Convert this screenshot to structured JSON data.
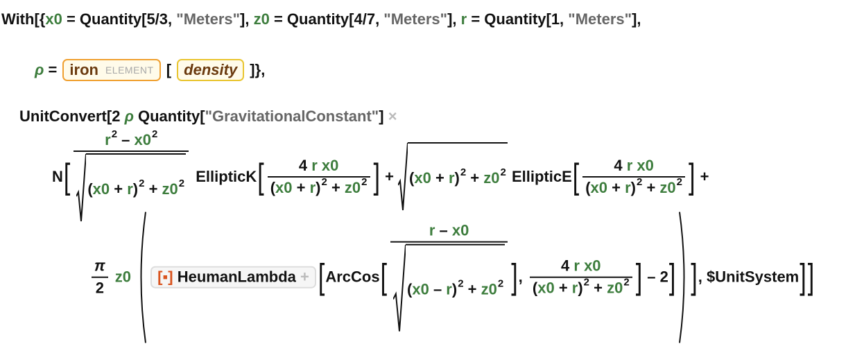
{
  "lines": [
    [
      "With[{",
      {
        "text": "x0",
        "color": "#3d7d3d"
      },
      " = Quantity[5/3, ",
      {
        "text": "\"Meters\"",
        "color": "#666666"
      },
      "], ",
      {
        "text": "z0",
        "color": "#3d7d3d"
      },
      " = Quantity[4/7, ",
      {
        "text": "\"Meters\"",
        "color": "#666666"
      },
      "], ",
      {
        "text": "r",
        "color": "#3d7d3d"
      },
      " = Quantity[1, ",
      {
        "text": "\"Meters\"",
        "color": "#666666"
      },
      "],"
    ],
    [
      {
        "text": "ρ",
        "color": "#3d7d3d",
        "italic": true
      },
      " = ",
      {
        "box": [
          {
            "text": "iron",
            "color": "#6b3a0f"
          },
          {
            "label": "ELEMENT"
          }
        ],
        "border": "#f0a030",
        "fill": "#fffbea"
      },
      " [ ",
      {
        "box": [
          {
            "text": "density",
            "color": "#6b3a0f",
            "italic": true
          }
        ],
        "border": "#e9c530",
        "fill": "#fffbea"
      },
      " ]},"
    ],
    [
      "UnitConvert[2 ",
      {
        "text": "ρ",
        "color": "#3d7d3d",
        "italic": true
      },
      " Quantity[",
      {
        "text": "\"GravitationalConstant\"",
        "color": "#666666"
      },
      "] ",
      {
        "text": "×",
        "color": "#bbbbbb"
      }
    ],
    [
      "N",
      {
        "bracket": "["
      },
      {
        "frac": [
          [
            {
              "text": "r",
              "color": "#3d7d3d"
            },
            {
              "sup": "2"
            },
            " – ",
            {
              "text": "x0",
              "color": "#3d7d3d"
            },
            {
              "sup": "2"
            }
          ],
          [
            {
              "sqrt": [
                "(",
                {
                  "text": "x0",
                  "color": "#3d7d3d"
                },
                " + ",
                {
                  "text": "r",
                  "color": "#3d7d3d"
                },
                ")",
                {
                  "sup": "2"
                },
                " + ",
                {
                  "text": "z0",
                  "color": "#3d7d3d"
                },
                {
                  "sup": "2"
                }
              ]
            }
          ]
        ]
      },
      " EllipticK",
      {
        "bracket": "["
      },
      {
        "frac": [
          [
            "4 ",
            {
              "text": "r",
              "color": "#3d7d3d"
            },
            " ",
            {
              "text": "x0",
              "color": "#3d7d3d"
            }
          ],
          [
            "(",
            {
              "text": "x0",
              "color": "#3d7d3d"
            },
            " + ",
            {
              "text": "r",
              "color": "#3d7d3d"
            },
            ")",
            {
              "sup": "2"
            },
            " + ",
            {
              "text": "z0",
              "color": "#3d7d3d"
            },
            {
              "sup": "2"
            }
          ]
        ]
      },
      {
        "bracket": "]"
      },
      " + ",
      {
        "sqrt": [
          "(",
          {
            "text": "x0",
            "color": "#3d7d3d"
          },
          " + ",
          {
            "text": "r",
            "color": "#3d7d3d"
          },
          ")",
          {
            "sup": "2"
          },
          " + ",
          {
            "text": "z0",
            "color": "#3d7d3d"
          },
          {
            "sup": "2"
          }
        ]
      },
      " EllipticE",
      {
        "bracket": "["
      },
      {
        "frac": [
          [
            "4 ",
            {
              "text": "r",
              "color": "#3d7d3d"
            },
            " ",
            {
              "text": "x0",
              "color": "#3d7d3d"
            }
          ],
          [
            "(",
            {
              "text": "x0",
              "color": "#3d7d3d"
            },
            " + ",
            {
              "text": "r",
              "color": "#3d7d3d"
            },
            ")",
            {
              "sup": "2"
            },
            " + ",
            {
              "text": "z0",
              "color": "#3d7d3d"
            },
            {
              "sup": "2"
            }
          ]
        ]
      },
      {
        "bracket": "]"
      },
      " +"
    ],
    [
      {
        "frac": [
          [
            {
              "text": "π",
              "italic": true
            }
          ],
          [
            "2"
          ]
        ]
      },
      " ",
      {
        "text": "z0",
        "color": "#3d7d3d"
      },
      " ",
      {
        "paren": [
          {
            "box": [
              {
                "text": "[▪]",
                "color": "#d9531e"
              },
              " HeumanLambda ",
              {
                "text": "+",
                "color": "#bbbbbb"
              }
            ],
            "border": "#dddddd",
            "fill": "#f6f6f6"
          },
          {
            "bracket": "["
          },
          "ArcCos",
          {
            "bracket": "["
          },
          {
            "frac": [
              [
                {
                  "text": "r",
                  "color": "#3d7d3d"
                },
                " – ",
                {
                  "text": "x0",
                  "color": "#3d7d3d"
                }
              ],
              [
                {
                  "sqrt": [
                    "(",
                    {
                      "text": "x0",
                      "color": "#3d7d3d"
                    },
                    " – ",
                    {
                      "text": "r",
                      "color": "#3d7d3d"
                    },
                    ")",
                    {
                      "sup": "2"
                    },
                    " + ",
                    {
                      "text": "z0",
                      "color": "#3d7d3d"
                    },
                    {
                      "sup": "2"
                    }
                  ]
                }
              ]
            ]
          },
          {
            "bracket": "]"
          },
          ", ",
          {
            "frac": [
              [
                "4 ",
                {
                  "text": "r",
                  "color": "#3d7d3d"
                },
                " ",
                {
                  "text": "x0",
                  "color": "#3d7d3d"
                }
              ],
              [
                "(",
                {
                  "text": "x0",
                  "color": "#3d7d3d"
                },
                " + ",
                {
                  "text": "r",
                  "color": "#3d7d3d"
                },
                ")",
                {
                  "sup": "2"
                },
                " + ",
                {
                  "text": "z0",
                  "color": "#3d7d3d"
                },
                {
                  "sup": "2"
                }
              ]
            ]
          },
          {
            "bracket": "]"
          },
          " – 2",
          {
            "bracket": "]"
          }
        ]
      },
      {
        "bracket": "]"
      },
      ", $UnitSystem",
      {
        "bracket": "]"
      },
      {
        "bracket": "]"
      }
    ]
  ]
}
